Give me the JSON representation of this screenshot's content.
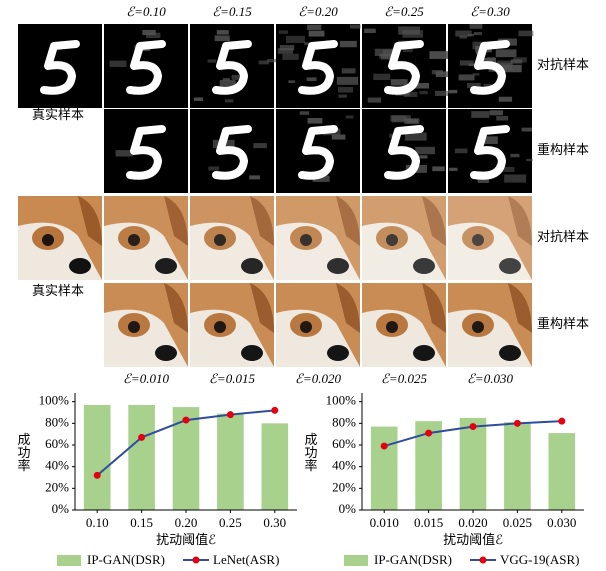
{
  "figure": {
    "mnist": {
      "eps_labels": [
        "ℰ=0.10",
        "ℰ=0.15",
        "ℰ=0.20",
        "ℰ=0.25",
        "ℰ=0.30"
      ],
      "real_label": "真实样本",
      "row_labels": [
        "对抗样本",
        "重构样本"
      ]
    },
    "dog": {
      "eps_labels": [
        "ℰ=0.010",
        "ℰ=0.015",
        "ℰ=0.020",
        "ℰ=0.025",
        "ℰ=0.030"
      ],
      "real_label": "真实样本",
      "row_labels": [
        "对抗样本",
        "重构样本"
      ]
    }
  },
  "chart_data": [
    {
      "type": "combo",
      "ylabel": "成功率",
      "xlabel": "扰动阈值ℰ",
      "categories": [
        "0.10",
        "0.15",
        "0.20",
        "0.25",
        "0.30"
      ],
      "ylim": [
        0,
        108
      ],
      "yticks": [
        {
          "value": 0,
          "label": "0%"
        },
        {
          "value": 20,
          "label": "20%"
        },
        {
          "value": 40,
          "label": "40%"
        },
        {
          "value": 60,
          "label": "60%"
        },
        {
          "value": 80,
          "label": "80%"
        },
        {
          "value": 100,
          "label": "100%"
        }
      ],
      "series": [
        {
          "name": "IP-GAN(DSR)",
          "type": "bar",
          "color": "#a9d18e",
          "values": [
            97,
            97,
            95,
            89,
            80
          ]
        },
        {
          "name": "LeNet(ASR)",
          "type": "line",
          "color": "#2e4d9c",
          "marker_color": "#e3000f",
          "values": [
            32,
            67,
            83,
            88,
            92
          ]
        }
      ]
    },
    {
      "type": "combo",
      "ylabel": "成功率",
      "xlabel": "扰动阈值ℰ",
      "categories": [
        "0.010",
        "0.015",
        "0.020",
        "0.025",
        "0.030"
      ],
      "ylim": [
        0,
        108
      ],
      "yticks": [
        {
          "value": 0,
          "label": "0%"
        },
        {
          "value": 20,
          "label": "20%"
        },
        {
          "value": 40,
          "label": "40%"
        },
        {
          "value": 60,
          "label": "60%"
        },
        {
          "value": 80,
          "label": "80%"
        },
        {
          "value": 100,
          "label": "100%"
        }
      ],
      "series": [
        {
          "name": "IP-GAN(DSR)",
          "type": "bar",
          "color": "#a9d18e",
          "values": [
            77,
            82,
            85,
            81,
            71
          ]
        },
        {
          "name": "VGG-19(ASR)",
          "type": "line",
          "color": "#2e4d9c",
          "marker_color": "#e3000f",
          "values": [
            59,
            71,
            77,
            80,
            82
          ]
        }
      ]
    }
  ]
}
